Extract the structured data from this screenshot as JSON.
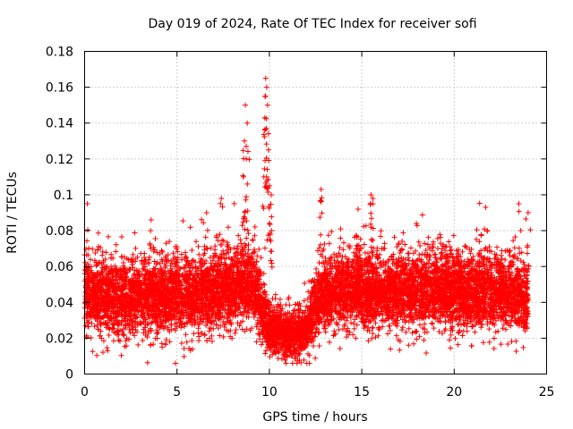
{
  "chart_data": {
    "type": "scatter",
    "title": "Day 019 of 2024, Rate Of TEC Index for receiver sofi",
    "xlabel": "GPS time / hours",
    "ylabel": "ROTI / TECUs",
    "xlim": [
      0,
      25
    ],
    "ylim": [
      0,
      0.18
    ],
    "x_ticks": [
      0,
      5,
      10,
      15,
      20,
      25
    ],
    "x_tick_labels": [
      "0",
      "5",
      "10",
      "15",
      "20",
      "25"
    ],
    "y_ticks": [
      0,
      0.02,
      0.04,
      0.06,
      0.08,
      0.1,
      0.12,
      0.14,
      0.16,
      0.18
    ],
    "y_tick_labels": [
      "0",
      "0.02",
      "0.04",
      "0.06",
      "0.08",
      "0.1",
      "0.12",
      "0.14",
      "0.16",
      "0.18"
    ],
    "grid": true,
    "marker": "+",
    "marker_color": "#ff0000",
    "series": [
      {
        "name": "ROTI",
        "profile": {
          "baseline": [
            [
              0.0,
              0.045
            ],
            [
              0.5,
              0.043
            ],
            [
              1.0,
              0.044
            ],
            [
              2.0,
              0.042
            ],
            [
              3.0,
              0.043
            ],
            [
              4.0,
              0.044
            ],
            [
              5.0,
              0.043
            ],
            [
              6.0,
              0.044
            ],
            [
              7.0,
              0.046
            ],
            [
              8.0,
              0.048
            ],
            [
              8.5,
              0.052
            ],
            [
              9.0,
              0.05
            ],
            [
              9.5,
              0.04
            ],
            [
              10.0,
              0.025
            ],
            [
              11.0,
              0.022
            ],
            [
              12.0,
              0.024
            ],
            [
              12.5,
              0.04
            ],
            [
              13.0,
              0.045
            ],
            [
              14.0,
              0.046
            ],
            [
              15.0,
              0.047
            ],
            [
              16.0,
              0.046
            ],
            [
              17.0,
              0.045
            ],
            [
              18.0,
              0.046
            ],
            [
              19.0,
              0.047
            ],
            [
              20.0,
              0.046
            ],
            [
              21.0,
              0.045
            ],
            [
              22.0,
              0.046
            ],
            [
              23.0,
              0.045
            ],
            [
              24.0,
              0.042
            ]
          ],
          "spread": [
            [
              0.0,
              0.018
            ],
            [
              8.0,
              0.02
            ],
            [
              9.5,
              0.018
            ],
            [
              10.0,
              0.012
            ],
            [
              12.0,
              0.012
            ],
            [
              12.5,
              0.018
            ],
            [
              24.0,
              0.019
            ]
          ],
          "spikes": [
            [
              8.7,
              0.15
            ],
            [
              8.8,
              0.14
            ],
            [
              8.65,
              0.13
            ],
            [
              8.75,
              0.12
            ],
            [
              8.6,
              0.11
            ],
            [
              9.8,
              0.165
            ],
            [
              9.85,
              0.16
            ],
            [
              9.9,
              0.15
            ],
            [
              9.75,
              0.143
            ],
            [
              9.95,
              0.125
            ],
            [
              10.0,
              0.105
            ],
            [
              10.1,
              0.1
            ],
            [
              9.7,
              0.11
            ],
            [
              12.8,
              0.103
            ],
            [
              15.5,
              0.1
            ],
            [
              15.6,
              0.098
            ],
            [
              7.4,
              0.098
            ],
            [
              0.15,
              0.095
            ],
            [
              21.7,
              0.093
            ],
            [
              14.8,
              0.092
            ],
            [
              23.5,
              0.095
            ],
            [
              24.0,
              0.09
            ],
            [
              6.6,
              0.09
            ],
            [
              3.6,
              0.086
            ]
          ]
        },
        "num_samples": 9000
      }
    ]
  }
}
